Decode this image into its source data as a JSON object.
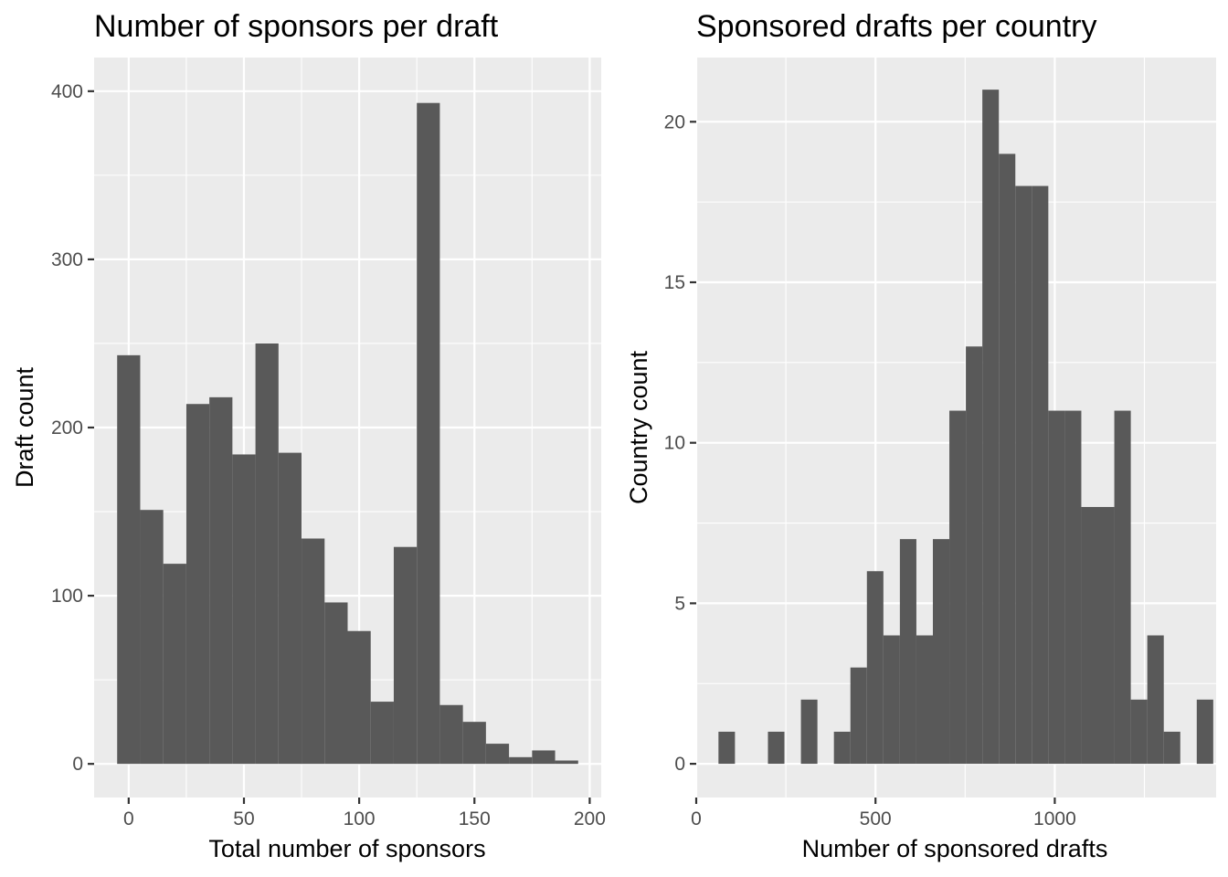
{
  "chart_data": [
    {
      "type": "bar",
      "subtype": "histogram",
      "title": "Number of sponsors per draft",
      "xlabel": "Total number of sponsors",
      "ylabel": "Draft count",
      "xlim": [
        -15,
        205
      ],
      "ylim": [
        -20,
        420
      ],
      "xticks": [
        0,
        50,
        100,
        150,
        200
      ],
      "xtick_labels": [
        "0",
        "50",
        "100",
        "150",
        "200"
      ],
      "yticks": [
        0,
        100,
        200,
        300,
        400
      ],
      "ytick_labels": [
        "0",
        "100",
        "200",
        "300",
        "400"
      ],
      "grid": true,
      "bin_width": 10,
      "bins": [
        {
          "x0": -5,
          "x1": 5,
          "count": 243
        },
        {
          "x0": 5,
          "x1": 15,
          "count": 151
        },
        {
          "x0": 15,
          "x1": 25,
          "count": 119
        },
        {
          "x0": 25,
          "x1": 35,
          "count": 214
        },
        {
          "x0": 35,
          "x1": 45,
          "count": 218
        },
        {
          "x0": 45,
          "x1": 55,
          "count": 184
        },
        {
          "x0": 55,
          "x1": 65,
          "count": 250
        },
        {
          "x0": 65,
          "x1": 75,
          "count": 185
        },
        {
          "x0": 75,
          "x1": 85,
          "count": 134
        },
        {
          "x0": 85,
          "x1": 95,
          "count": 96
        },
        {
          "x0": 95,
          "x1": 105,
          "count": 79
        },
        {
          "x0": 105,
          "x1": 115,
          "count": 37
        },
        {
          "x0": 115,
          "x1": 125,
          "count": 129
        },
        {
          "x0": 125,
          "x1": 135,
          "count": 393
        },
        {
          "x0": 135,
          "x1": 145,
          "count": 35
        },
        {
          "x0": 145,
          "x1": 155,
          "count": 25
        },
        {
          "x0": 155,
          "x1": 165,
          "count": 12
        },
        {
          "x0": 165,
          "x1": 175,
          "count": 4
        },
        {
          "x0": 175,
          "x1": 185,
          "count": 8
        },
        {
          "x0": 185,
          "x1": 195,
          "count": 2
        }
      ]
    },
    {
      "type": "bar",
      "subtype": "histogram",
      "title": "Sponsored drafts per country",
      "xlabel": "Number of sponsored drafts",
      "ylabel": "Country count",
      "xlim": [
        0,
        1450
      ],
      "ylim": [
        -1.05,
        22
      ],
      "xticks": [
        0,
        500,
        1000
      ],
      "xtick_labels": [
        "0",
        "500",
        "1000"
      ],
      "yticks": [
        0,
        5,
        10,
        15,
        20
      ],
      "ytick_labels": [
        "0",
        "5",
        "10",
        "15",
        "20"
      ],
      "grid": true,
      "bin_width": 46,
      "bins": [
        {
          "x0": 62,
          "x1": 108,
          "count": 1
        },
        {
          "x0": 108,
          "x1": 154,
          "count": 0
        },
        {
          "x0": 200,
          "x1": 246,
          "count": 1
        },
        {
          "x0": 292,
          "x1": 338,
          "count": 2
        },
        {
          "x0": 384,
          "x1": 430,
          "count": 1
        },
        {
          "x0": 430,
          "x1": 476,
          "count": 3
        },
        {
          "x0": 476,
          "x1": 522,
          "count": 6
        },
        {
          "x0": 522,
          "x1": 568,
          "count": 4
        },
        {
          "x0": 568,
          "x1": 614,
          "count": 7
        },
        {
          "x0": 614,
          "x1": 660,
          "count": 4
        },
        {
          "x0": 660,
          "x1": 706,
          "count": 7
        },
        {
          "x0": 706,
          "x1": 752,
          "count": 11
        },
        {
          "x0": 752,
          "x1": 798,
          "count": 13
        },
        {
          "x0": 798,
          "x1": 844,
          "count": 21
        },
        {
          "x0": 844,
          "x1": 890,
          "count": 19
        },
        {
          "x0": 890,
          "x1": 936,
          "count": 18
        },
        {
          "x0": 936,
          "x1": 982,
          "count": 18
        },
        {
          "x0": 982,
          "x1": 1028,
          "count": 11
        },
        {
          "x0": 1028,
          "x1": 1074,
          "count": 11
        },
        {
          "x0": 1074,
          "x1": 1120,
          "count": 8
        },
        {
          "x0": 1120,
          "x1": 1166,
          "count": 8
        },
        {
          "x0": 1166,
          "x1": 1212,
          "count": 11
        },
        {
          "x0": 1212,
          "x1": 1258,
          "count": 2
        },
        {
          "x0": 1258,
          "x1": 1304,
          "count": 4
        },
        {
          "x0": 1304,
          "x1": 1350,
          "count": 1
        },
        {
          "x0": 1350,
          "x1": 1396,
          "count": 0
        },
        {
          "x0": 1396,
          "x1": 1442,
          "count": 2
        }
      ]
    }
  ]
}
